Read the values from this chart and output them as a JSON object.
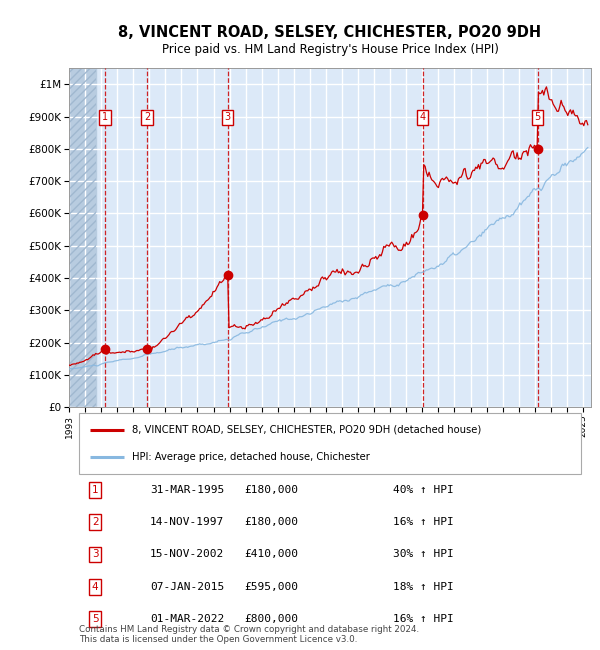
{
  "title": "8, VINCENT ROAD, SELSEY, CHICHESTER, PO20 9DH",
  "subtitle": "Price paid vs. HM Land Registry's House Price Index (HPI)",
  "ylim": [
    0,
    1050000
  ],
  "yticks": [
    0,
    100000,
    200000,
    300000,
    400000,
    500000,
    600000,
    700000,
    800000,
    900000,
    1000000
  ],
  "ytick_labels": [
    "£0",
    "£100K",
    "£200K",
    "£300K",
    "£400K",
    "£500K",
    "£600K",
    "£700K",
    "£800K",
    "£900K",
    "£1M"
  ],
  "xlim_start": 1993.0,
  "xlim_end": 2025.5,
  "background_color": "#dce9f8",
  "hatch_color": "#c0cfdf",
  "grid_color": "#ffffff",
  "line_color_red": "#cc0000",
  "line_color_blue": "#88b8e0",
  "sale_dates_x": [
    1995.25,
    1997.87,
    2002.88,
    2015.02,
    2022.17
  ],
  "sale_prices": [
    180000,
    180000,
    410000,
    595000,
    800000
  ],
  "sale_labels": [
    "1",
    "2",
    "3",
    "4",
    "5"
  ],
  "legend_line1": "8, VINCENT ROAD, SELSEY, CHICHESTER, PO20 9DH (detached house)",
  "legend_line2": "HPI: Average price, detached house, Chichester",
  "table_data": [
    [
      "1",
      "31-MAR-1995",
      "£180,000",
      "40% ↑ HPI"
    ],
    [
      "2",
      "14-NOV-1997",
      "£180,000",
      "16% ↑ HPI"
    ],
    [
      "3",
      "15-NOV-2002",
      "£410,000",
      "30% ↑ HPI"
    ],
    [
      "4",
      "07-JAN-2015",
      "£595,000",
      "18% ↑ HPI"
    ],
    [
      "5",
      "01-MAR-2022",
      "£800,000",
      "16% ↑ HPI"
    ]
  ],
  "footer": "Contains HM Land Registry data © Crown copyright and database right 2024.\nThis data is licensed under the Open Government Licence v3.0."
}
